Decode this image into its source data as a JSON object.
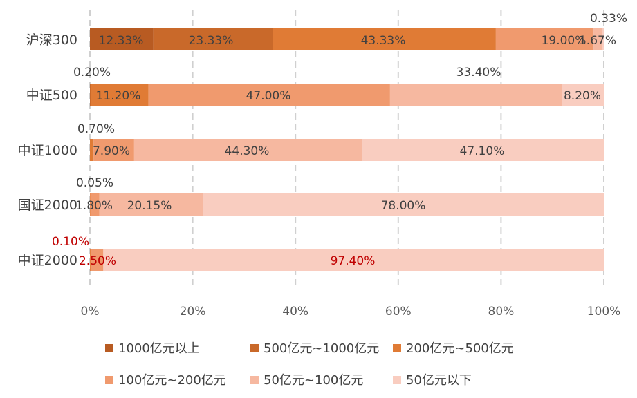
{
  "chart_data": {
    "type": "bar",
    "orientation": "horizontal",
    "stacked": true,
    "percent": true,
    "categories": [
      "沪深300",
      "中证500",
      "中证1000",
      "国证2000",
      "中证2000"
    ],
    "xlim": [
      0,
      100
    ],
    "x_ticks": [
      "0%",
      "20%",
      "40%",
      "60%",
      "80%",
      "100%"
    ],
    "grid": "vertical dashed",
    "legend_position": "bottom",
    "series": [
      {
        "name": "1000亿元以上",
        "color": "#b85b22",
        "values": [
          12.33,
          0,
          0,
          0,
          0
        ],
        "labels": [
          "12.33%",
          "",
          "",
          "",
          ""
        ]
      },
      {
        "name": "500亿元~1000亿元",
        "color": "#c9692a",
        "values": [
          23.33,
          0.2,
          0,
          0,
          0
        ],
        "labels": [
          "23.33%",
          "0.20%",
          "",
          "",
          ""
        ]
      },
      {
        "name": "200亿元~500亿元",
        "color": "#e07b35",
        "values": [
          43.33,
          11.2,
          0.7,
          0.05,
          0.1
        ],
        "labels": [
          "43.33%",
          "11.20%",
          "0.70%",
          "0.05%",
          "0.10%"
        ]
      },
      {
        "name": "100亿元~200亿元",
        "color": "#f09a6e",
        "values": [
          19.0,
          47.0,
          7.9,
          1.8,
          2.5
        ],
        "labels": [
          "19.00%",
          "47.00%",
          "7.90%",
          "1.80%",
          "2.50%"
        ]
      },
      {
        "name": "50亿元~100亿元",
        "color": "#f6b8a0",
        "values": [
          1.67,
          33.4,
          44.3,
          20.15,
          0
        ],
        "labels": [
          "1.67%",
          "33.40%",
          "44.30%",
          "20.15%",
          ""
        ]
      },
      {
        "name": "50亿元以下",
        "color": "#f9cdc0",
        "values": [
          0.33,
          8.2,
          47.1,
          78.0,
          97.4
        ],
        "labels": [
          "0.33%",
          "8.20%",
          "47.10%",
          "78.00%",
          "97.40%"
        ]
      }
    ],
    "label_colors": {
      "default": "#404040",
      "highlight": "#c00000"
    },
    "highlight_category": "中证2000"
  }
}
